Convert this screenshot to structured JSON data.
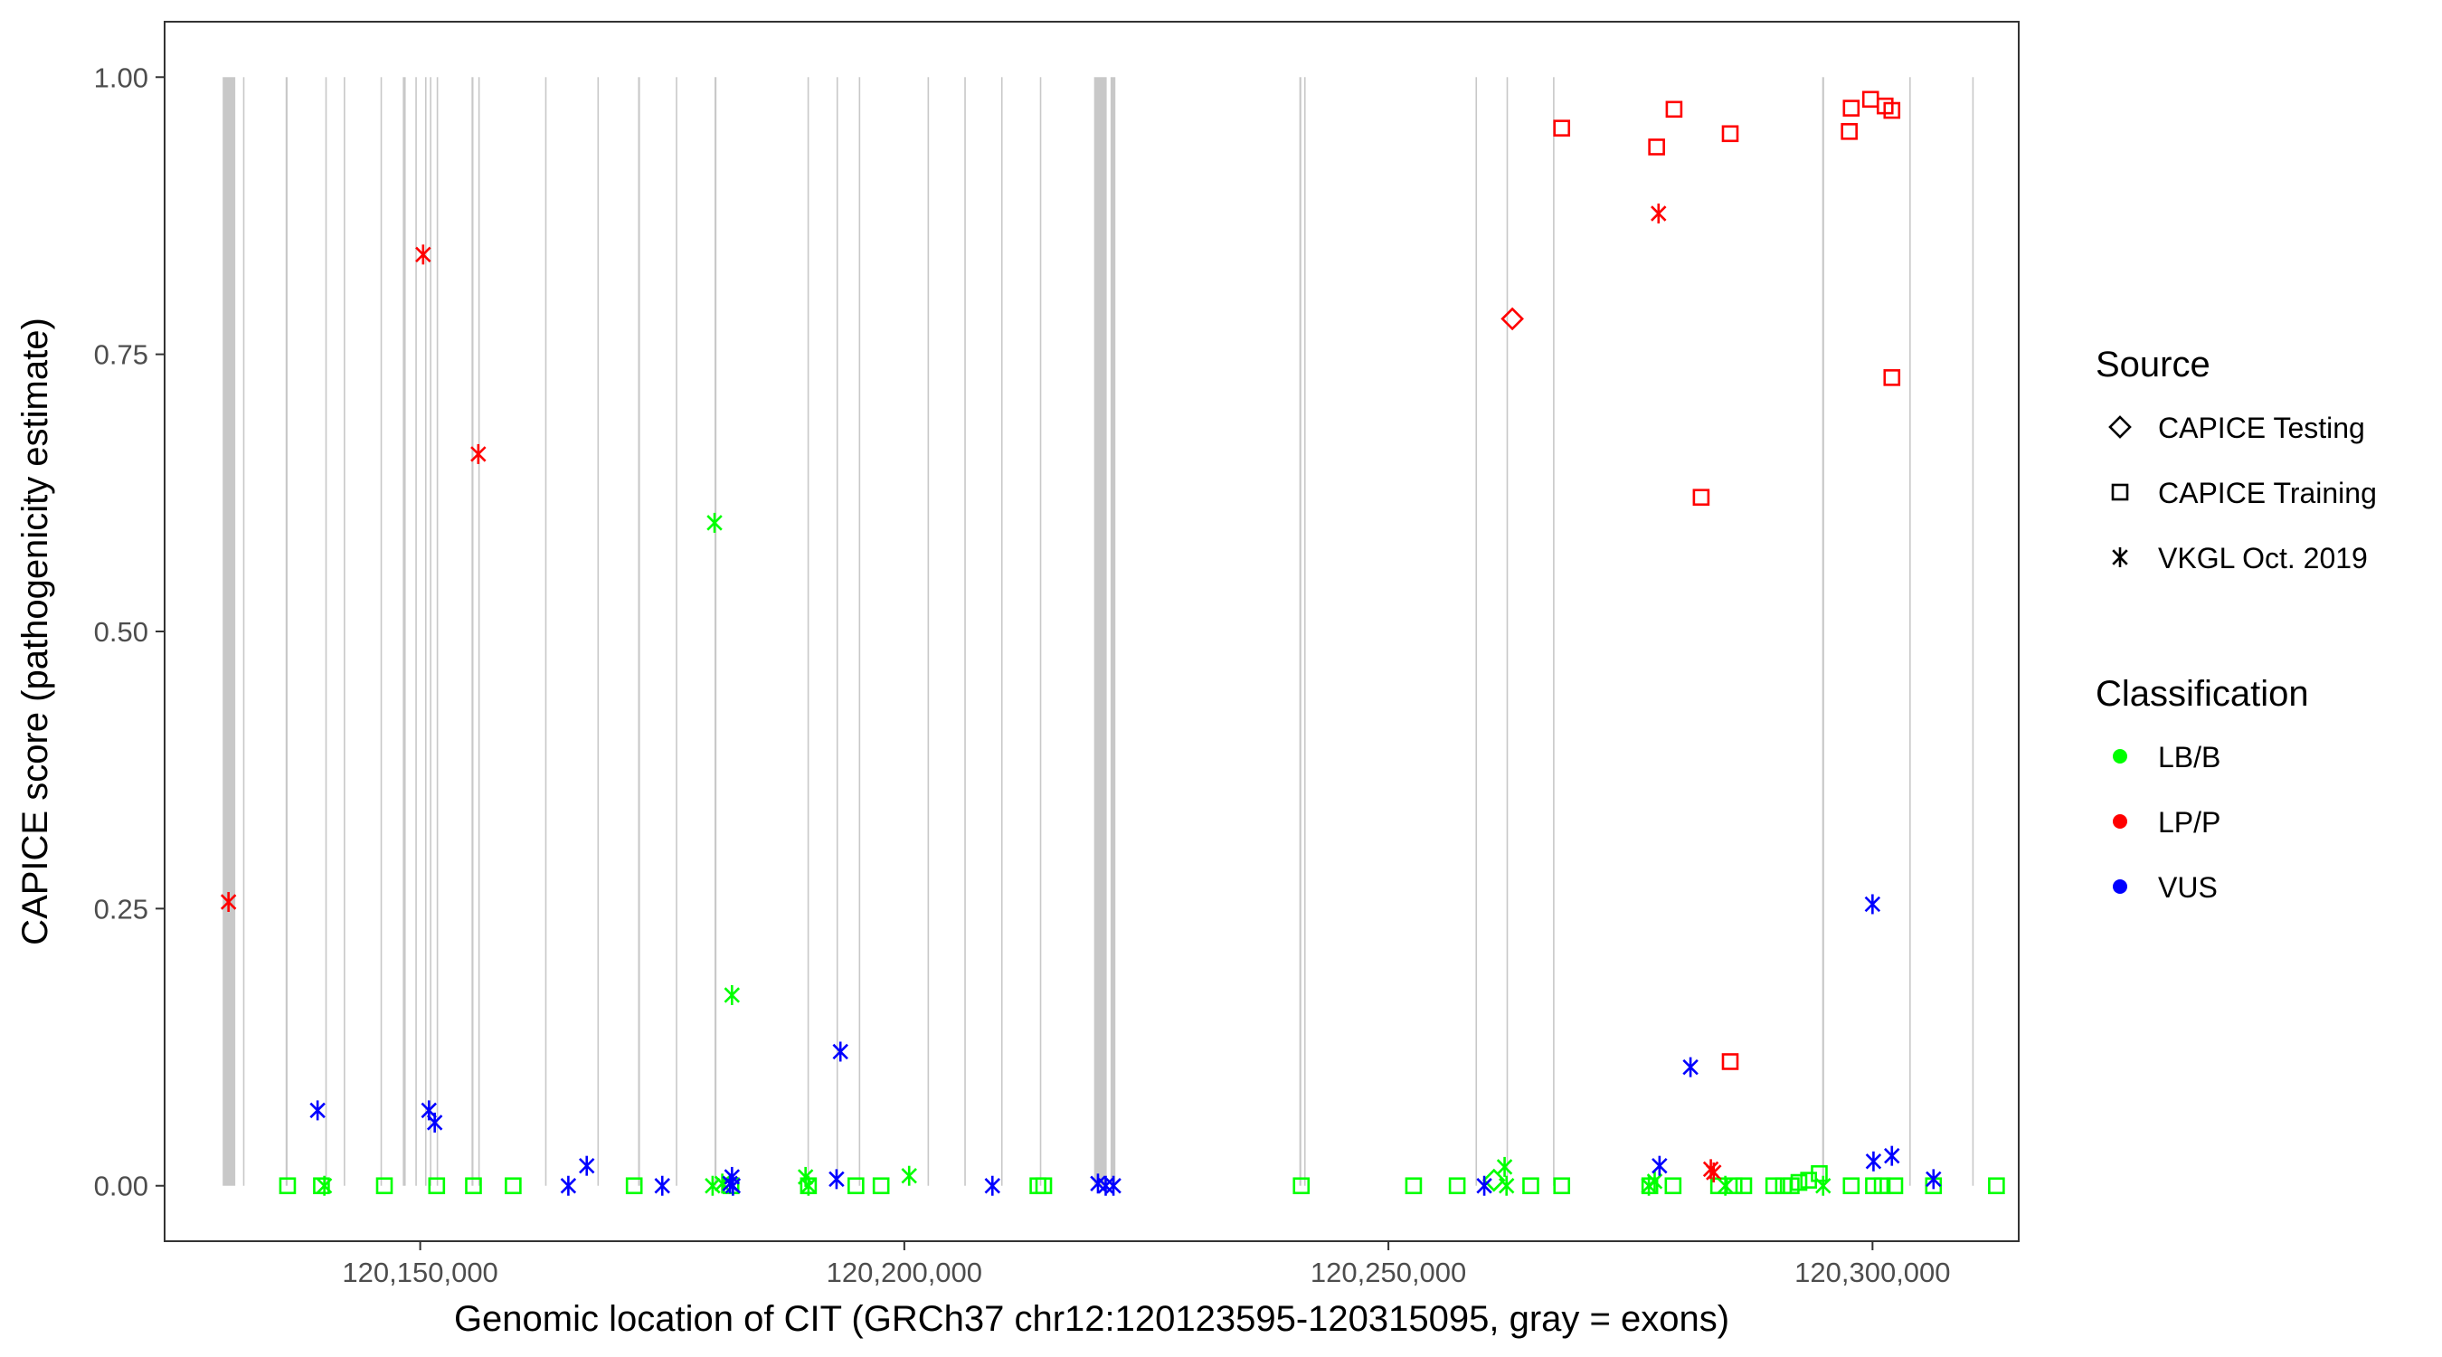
{
  "chart_data": {
    "type": "scatter",
    "xlabel": "Genomic location of CIT (GRCh37 chr12:120123595-120315095, gray = exons)",
    "ylabel": "CAPICE score (pathogenicity estimate)",
    "xlim": [
      120123600,
      120315100
    ],
    "ylim": [
      -0.05,
      1.05
    ],
    "x_ticks": [
      120150000,
      120200000,
      120250000,
      120300000
    ],
    "x_tick_labels": [
      "120,150,000",
      "120,200,000",
      "120,250,000",
      "120,300,000"
    ],
    "y_ticks": [
      0,
      0.25,
      0.5,
      0.75,
      1
    ],
    "y_tick_labels": [
      "0.00",
      "0.25",
      "0.50",
      "0.75",
      "1.00"
    ],
    "grid": false,
    "legend_position": "right",
    "exons": [
      [
        120129600,
        120130900
      ],
      [
        120131700,
        120131800
      ],
      [
        120136100,
        120136300
      ],
      [
        120140200,
        120140300
      ],
      [
        120142100,
        120142200
      ],
      [
        120145900,
        120146000
      ],
      [
        120148200,
        120148500
      ],
      [
        120149500,
        120149600
      ],
      [
        120150500,
        120150600
      ],
      [
        120151000,
        120151100
      ],
      [
        120151700,
        120151800
      ],
      [
        120155300,
        120155500
      ],
      [
        120156000,
        120156100
      ],
      [
        120162900,
        120163000
      ],
      [
        120168300,
        120168400
      ],
      [
        120172500,
        120172700
      ],
      [
        120176400,
        120176500
      ],
      [
        120180400,
        120180600
      ],
      [
        120190000,
        120190100
      ],
      [
        120193000,
        120193100
      ],
      [
        120195300,
        120195400
      ],
      [
        120202400,
        120202500
      ],
      [
        120206200,
        120206300
      ],
      [
        120210000,
        120210100
      ],
      [
        120214000,
        120214100
      ],
      [
        120219600,
        120220900
      ],
      [
        120221300,
        120221800
      ],
      [
        120240800,
        120241000
      ],
      [
        120241300,
        120241400
      ],
      [
        120259000,
        120259100
      ],
      [
        120262200,
        120262300
      ],
      [
        120267000,
        120267100
      ],
      [
        120294800,
        120295000
      ],
      [
        120303800,
        120303900
      ],
      [
        120310300,
        120310400
      ]
    ],
    "series": [
      {
        "source": "CAPICE Testing",
        "shape": "diamond",
        "points": [
          {
            "x": 120262800,
            "y": 0.782,
            "class": "LP/P"
          },
          {
            "x": 120260900,
            "y": 0.005,
            "class": "LB/B"
          }
        ]
      },
      {
        "source": "CAPICE Training",
        "shape": "square",
        "points": [
          {
            "x": 120267900,
            "y": 0.954,
            "class": "LP/P"
          },
          {
            "x": 120277700,
            "y": 0.937,
            "class": "LP/P"
          },
          {
            "x": 120279500,
            "y": 0.971,
            "class": "LP/P"
          },
          {
            "x": 120285300,
            "y": 0.949,
            "class": "LP/P"
          },
          {
            "x": 120297800,
            "y": 0.972,
            "class": "LP/P"
          },
          {
            "x": 120299800,
            "y": 0.98,
            "class": "LP/P"
          },
          {
            "x": 120301300,
            "y": 0.974,
            "class": "LP/P"
          },
          {
            "x": 120302000,
            "y": 0.97,
            "class": "LP/P"
          },
          {
            "x": 120297600,
            "y": 0.951,
            "class": "LP/P"
          },
          {
            "x": 120302000,
            "y": 0.729,
            "class": "LP/P"
          },
          {
            "x": 120282300,
            "y": 0.621,
            "class": "LP/P"
          },
          {
            "x": 120285300,
            "y": 0.112,
            "class": "LP/P"
          },
          {
            "x": 120136300,
            "y": 0.0,
            "class": "LB/B"
          },
          {
            "x": 120139800,
            "y": 0.0,
            "class": "LB/B"
          },
          {
            "x": 120146300,
            "y": 0.0,
            "class": "LB/B"
          },
          {
            "x": 120151700,
            "y": 0.0,
            "class": "LB/B"
          },
          {
            "x": 120155500,
            "y": 0.0,
            "class": "LB/B"
          },
          {
            "x": 120159600,
            "y": 0.0,
            "class": "LB/B"
          },
          {
            "x": 120172100,
            "y": 0.0,
            "class": "LB/B"
          },
          {
            "x": 120182100,
            "y": 0.0,
            "class": "LB/B"
          },
          {
            "x": 120190100,
            "y": 0.0,
            "class": "LB/B"
          },
          {
            "x": 120195000,
            "y": 0.0,
            "class": "LB/B"
          },
          {
            "x": 120197600,
            "y": 0.0,
            "class": "LB/B"
          },
          {
            "x": 120213800,
            "y": 0.0,
            "class": "LB/B"
          },
          {
            "x": 120214400,
            "y": 0.0,
            "class": "LB/B"
          },
          {
            "x": 120241000,
            "y": 0.0,
            "class": "LB/B"
          },
          {
            "x": 120252600,
            "y": 0.0,
            "class": "LB/B"
          },
          {
            "x": 120257100,
            "y": 0.0,
            "class": "LB/B"
          },
          {
            "x": 120264700,
            "y": 0.0,
            "class": "LB/B"
          },
          {
            "x": 120267900,
            "y": 0.0,
            "class": "LB/B"
          },
          {
            "x": 120277000,
            "y": 0.0,
            "class": "LB/B"
          },
          {
            "x": 120279400,
            "y": 0.0,
            "class": "LB/B"
          },
          {
            "x": 120284100,
            "y": 0.0,
            "class": "LB/B"
          },
          {
            "x": 120285700,
            "y": 0.0,
            "class": "LB/B"
          },
          {
            "x": 120286700,
            "y": 0.0,
            "class": "LB/B"
          },
          {
            "x": 120289800,
            "y": 0.0,
            "class": "LB/B"
          },
          {
            "x": 120290800,
            "y": 0.0,
            "class": "LB/B"
          },
          {
            "x": 120291600,
            "y": 0.0,
            "class": "LB/B"
          },
          {
            "x": 120292400,
            "y": 0.003,
            "class": "LB/B"
          },
          {
            "x": 120293400,
            "y": 0.005,
            "class": "LB/B"
          },
          {
            "x": 120294500,
            "y": 0.011,
            "class": "LB/B"
          },
          {
            "x": 120297800,
            "y": 0.0,
            "class": "LB/B"
          },
          {
            "x": 120300100,
            "y": 0.0,
            "class": "LB/B"
          },
          {
            "x": 120301000,
            "y": 0.0,
            "class": "LB/B"
          },
          {
            "x": 120302300,
            "y": 0.0,
            "class": "LB/B"
          },
          {
            "x": 120306300,
            "y": 0.0,
            "class": "LB/B"
          },
          {
            "x": 120312800,
            "y": 0.0,
            "class": "LB/B"
          }
        ]
      },
      {
        "source": "VKGL Oct. 2019",
        "shape": "asterisk",
        "points": [
          {
            "x": 120130200,
            "y": 0.256,
            "class": "LP/P"
          },
          {
            "x": 120150300,
            "y": 0.84,
            "class": "LP/P"
          },
          {
            "x": 120156000,
            "y": 0.66,
            "class": "LP/P"
          },
          {
            "x": 120277900,
            "y": 0.877,
            "class": "LP/P"
          },
          {
            "x": 120283600,
            "y": 0.012,
            "class": "LP/P"
          },
          {
            "x": 120283300,
            "y": 0.015,
            "class": "LP/P"
          },
          {
            "x": 120180400,
            "y": 0.598,
            "class": "LB/B"
          },
          {
            "x": 120182200,
            "y": 0.172,
            "class": "LB/B"
          },
          {
            "x": 120140100,
            "y": 0.0,
            "class": "LB/B"
          },
          {
            "x": 120180200,
            "y": 0.0,
            "class": "LB/B"
          },
          {
            "x": 120181200,
            "y": 0.002,
            "class": "LB/B"
          },
          {
            "x": 120189800,
            "y": 0.008,
            "class": "LB/B"
          },
          {
            "x": 120190100,
            "y": 0.0,
            "class": "LB/B"
          },
          {
            "x": 120200500,
            "y": 0.009,
            "class": "LB/B"
          },
          {
            "x": 120262000,
            "y": 0.017,
            "class": "LB/B"
          },
          {
            "x": 120262200,
            "y": 0.0,
            "class": "LB/B"
          },
          {
            "x": 120276900,
            "y": 0.0,
            "class": "LB/B"
          },
          {
            "x": 120277500,
            "y": 0.004,
            "class": "LB/B"
          },
          {
            "x": 120284800,
            "y": 0.0,
            "class": "LB/B"
          },
          {
            "x": 120294900,
            "y": 0.0,
            "class": "LB/B"
          },
          {
            "x": 120139400,
            "y": 0.068,
            "class": "VUS"
          },
          {
            "x": 120150900,
            "y": 0.068,
            "class": "VUS"
          },
          {
            "x": 120151500,
            "y": 0.057,
            "class": "VUS"
          },
          {
            "x": 120165300,
            "y": 0.0,
            "class": "VUS"
          },
          {
            "x": 120167200,
            "y": 0.018,
            "class": "VUS"
          },
          {
            "x": 120175000,
            "y": 0.0,
            "class": "VUS"
          },
          {
            "x": 120182200,
            "y": 0.008,
            "class": "VUS"
          },
          {
            "x": 120182000,
            "y": 0.002,
            "class": "VUS"
          },
          {
            "x": 120182300,
            "y": 0.0,
            "class": "VUS"
          },
          {
            "x": 120193400,
            "y": 0.121,
            "class": "VUS"
          },
          {
            "x": 120193000,
            "y": 0.006,
            "class": "VUS"
          },
          {
            "x": 120209100,
            "y": 0.0,
            "class": "VUS"
          },
          {
            "x": 120220000,
            "y": 0.002,
            "class": "VUS"
          },
          {
            "x": 120220800,
            "y": 0.0,
            "class": "VUS"
          },
          {
            "x": 120221600,
            "y": 0.0,
            "class": "VUS"
          },
          {
            "x": 120259900,
            "y": 0.0,
            "class": "VUS"
          },
          {
            "x": 120278000,
            "y": 0.018,
            "class": "VUS"
          },
          {
            "x": 120281200,
            "y": 0.107,
            "class": "VUS"
          },
          {
            "x": 120300000,
            "y": 0.254,
            "class": "VUS"
          },
          {
            "x": 120300100,
            "y": 0.022,
            "class": "VUS"
          },
          {
            "x": 120302000,
            "y": 0.027,
            "class": "VUS"
          },
          {
            "x": 120306300,
            "y": 0.006,
            "class": "VUS"
          }
        ]
      }
    ],
    "legend": {
      "source_title": "Source",
      "source_items": [
        {
          "label": "CAPICE Testing",
          "shape": "diamond"
        },
        {
          "label": "CAPICE Training",
          "shape": "square"
        },
        {
          "label": "VKGL Oct. 2019",
          "shape": "asterisk"
        }
      ],
      "class_title": "Classification",
      "class_items": [
        {
          "label": "LB/B",
          "color": "#00ff00"
        },
        {
          "label": "LP/P",
          "color": "#ff0000"
        },
        {
          "label": "VUS",
          "color": "#0000ff"
        }
      ]
    },
    "colors": {
      "LB/B": "#00ff00",
      "LP/P": "#ff0000",
      "VUS": "#0000ff",
      "exon": "#c8c8c8",
      "panel_border": "#333333",
      "tick_text": "#4d4d4d"
    }
  }
}
